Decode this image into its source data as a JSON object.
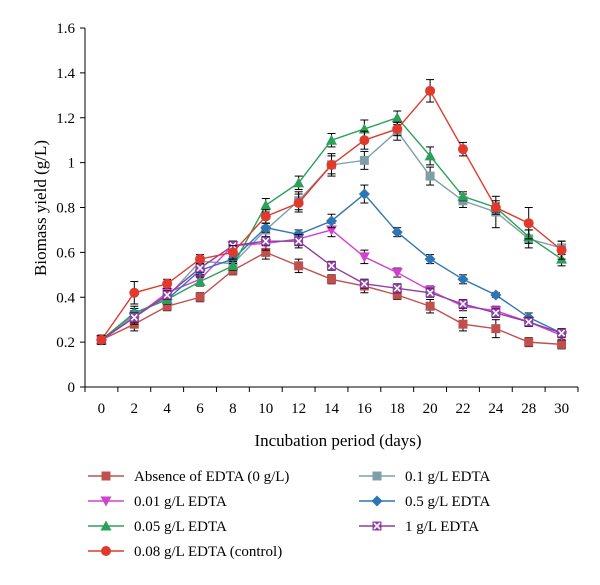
{
  "chart_data": {
    "type": "line",
    "title": "",
    "xlabel": "Incubation period (days)",
    "ylabel": "Biomass yield (g/L)",
    "x": [
      "0",
      "2",
      "4",
      "6",
      "8",
      "10",
      "12",
      "14",
      "16",
      "18",
      "20",
      "22",
      "24",
      "28",
      "30"
    ],
    "ylim": [
      0,
      1.6
    ],
    "yticks": [
      "0",
      "0.2",
      "0.4",
      "0.6",
      "0.8",
      "1",
      "1.2",
      "1.4",
      "1.6"
    ],
    "grid": false,
    "legend_position": "bottom",
    "series": [
      {
        "name": "Absence of EDTA (0 g/L)",
        "color": "#c0504d",
        "marker": "square",
        "values": [
          0.21,
          0.28,
          0.36,
          0.4,
          0.52,
          0.6,
          0.54,
          0.48,
          0.45,
          0.41,
          0.36,
          0.28,
          0.26,
          0.2,
          0.19
        ],
        "errors": [
          0.02,
          0.03,
          0.02,
          0.02,
          0.02,
          0.03,
          0.03,
          0.02,
          0.03,
          0.02,
          0.03,
          0.03,
          0.04,
          0.02,
          0.02
        ]
      },
      {
        "name": "0.1 g/L EDTA",
        "color": "#7f9fa8",
        "marker": "square",
        "values": [
          0.21,
          0.32,
          0.4,
          0.56,
          0.55,
          0.7,
          0.83,
          0.99,
          1.01,
          1.14,
          0.94,
          0.83,
          0.78,
          0.66,
          0.62
        ],
        "errors": [
          0.02,
          0.03,
          0.02,
          0.02,
          0.03,
          0.03,
          0.04,
          0.05,
          0.04,
          0.04,
          0.04,
          0.03,
          0.07,
          0.04,
          0.03
        ]
      },
      {
        "name": "0.01 g/L EDTA",
        "color": "#d142d1",
        "marker": "triangle-down",
        "values": [
          0.21,
          0.31,
          0.42,
          0.48,
          0.63,
          0.64,
          0.66,
          0.7,
          0.58,
          0.51,
          0.43,
          0.36,
          0.34,
          0.29,
          0.23
        ],
        "errors": [
          0.02,
          0.03,
          0.02,
          0.02,
          0.02,
          0.03,
          0.03,
          0.03,
          0.03,
          0.02,
          0.02,
          0.02,
          0.02,
          0.02,
          0.02
        ]
      },
      {
        "name": "0.5 g/L EDTA",
        "color": "#2e75b6",
        "marker": "diamond",
        "values": [
          0.21,
          0.33,
          0.39,
          0.52,
          0.57,
          0.71,
          0.68,
          0.74,
          0.86,
          0.69,
          0.57,
          0.48,
          0.41,
          0.31,
          0.24
        ],
        "errors": [
          0.02,
          0.02,
          0.02,
          0.02,
          0.02,
          0.02,
          0.02,
          0.03,
          0.04,
          0.02,
          0.02,
          0.02,
          0.01,
          0.02,
          0.02
        ]
      },
      {
        "name": "0.05 g/L EDTA",
        "color": "#2ca05a",
        "marker": "triangle",
        "values": [
          0.21,
          0.33,
          0.39,
          0.47,
          0.54,
          0.81,
          0.91,
          1.1,
          1.15,
          1.2,
          1.03,
          0.85,
          0.8,
          0.67,
          0.57
        ],
        "errors": [
          0.02,
          0.03,
          0.02,
          0.02,
          0.02,
          0.03,
          0.03,
          0.03,
          0.04,
          0.03,
          0.04,
          0.02,
          0.02,
          0.03,
          0.03
        ]
      },
      {
        "name": "1 g/L EDTA",
        "color": "#8e3ea3",
        "marker": "x-square",
        "values": [
          0.21,
          0.31,
          0.41,
          0.53,
          0.63,
          0.65,
          0.65,
          0.54,
          0.46,
          0.44,
          0.42,
          0.37,
          0.33,
          0.29,
          0.24
        ],
        "errors": [
          0.02,
          0.02,
          0.02,
          0.02,
          0.02,
          0.02,
          0.03,
          0.02,
          0.02,
          0.02,
          0.02,
          0.02,
          0.02,
          0.02,
          0.02
        ]
      },
      {
        "name": "0.08 g/L EDTA (control)",
        "color": "#e03a2c",
        "marker": "circle",
        "values": [
          0.21,
          0.42,
          0.46,
          0.57,
          0.6,
          0.76,
          0.82,
          0.99,
          1.1,
          1.15,
          1.32,
          1.06,
          0.8,
          0.73,
          0.61
        ],
        "errors": [
          0.02,
          0.05,
          0.02,
          0.02,
          0.03,
          0.03,
          0.04,
          0.04,
          0.04,
          0.03,
          0.05,
          0.03,
          0.03,
          0.07,
          0.04
        ]
      }
    ]
  }
}
